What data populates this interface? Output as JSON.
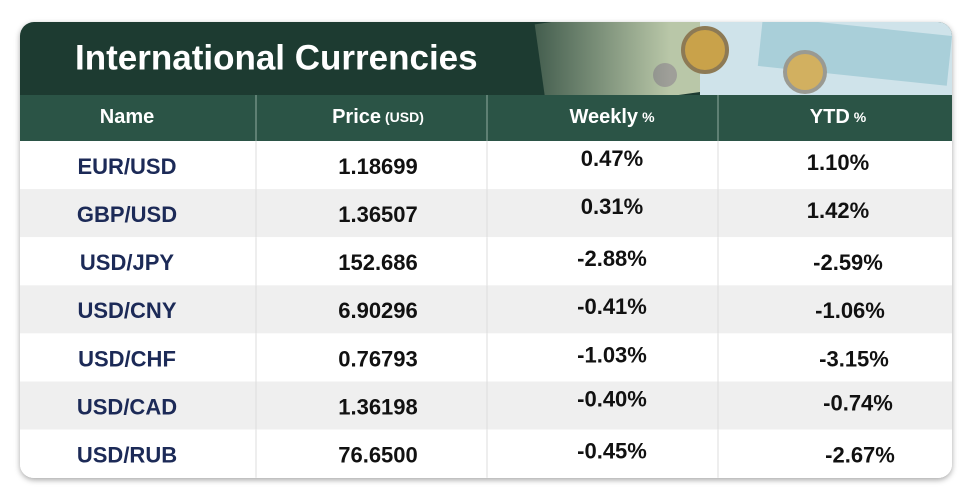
{
  "header": {
    "title": "International Currencies"
  },
  "table": {
    "columns": [
      {
        "label": "Name"
      },
      {
        "label": "Price",
        "unit": "(USD)"
      },
      {
        "label": "Weekly",
        "unit": "%"
      },
      {
        "label": "YTD",
        "unit": "%"
      }
    ],
    "rows": [
      [
        "EUR/USD",
        "1.18699",
        "0.47%",
        "1.10%"
      ],
      [
        "GBP/USD",
        "1.36507",
        "0.31%",
        "1.42%"
      ],
      [
        "USD/JPY",
        "152.686",
        "-2.88%",
        "-2.59%"
      ],
      [
        "USD/CNY",
        "6.90296",
        "-0.41%",
        "-1.06%"
      ],
      [
        "USD/CHF",
        "0.76793",
        "-1.03%",
        "-3.15%"
      ],
      [
        "USD/CAD",
        "1.36198",
        "-0.40%",
        "-0.74%"
      ],
      [
        "USD/RUB",
        "76.6500",
        "-0.45%",
        "-2.67%"
      ]
    ]
  }
}
